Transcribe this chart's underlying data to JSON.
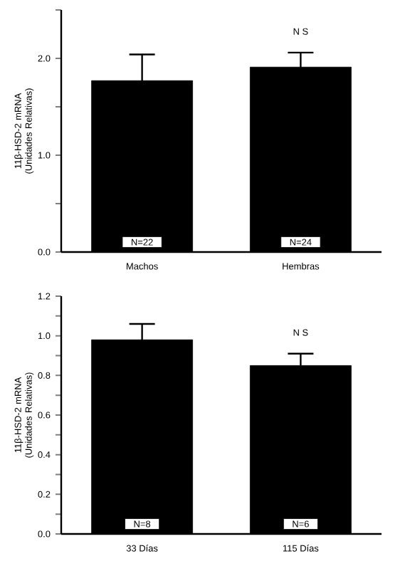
{
  "chart_data": [
    {
      "type": "bar",
      "ylabel": "11β-HSD-2 mRNA (Unidades Relativas)",
      "categories": [
        "Machos",
        "Hembras"
      ],
      "values": [
        1.77,
        1.91
      ],
      "errors": [
        0.27,
        0.15
      ],
      "color": "#000000",
      "ylim": [
        0,
        2.5
      ],
      "yticks": [
        {
          "value": 0,
          "label": "0.0"
        },
        {
          "value": 0.5,
          "label": null
        },
        {
          "value": 1,
          "label": "1.0"
        },
        {
          "value": 1.5,
          "label": null
        },
        {
          "value": 2,
          "label": "2.0"
        },
        {
          "value": 2.5,
          "label": null
        }
      ],
      "annotations": [
        "N=22",
        "N=24",
        "N S"
      ]
    },
    {
      "type": "bar",
      "ylabel": "11β-HSD-2 mRNA (Unidades Relativas)",
      "categories": [
        "33 Días",
        "115 Días"
      ],
      "values": [
        0.98,
        0.85
      ],
      "errors": [
        0.08,
        0.06
      ],
      "color": "#000000",
      "ylim": [
        0,
        1.2
      ],
      "yticks": [
        {
          "value": 0,
          "label": "0.0"
        },
        {
          "value": 0.1,
          "label": null
        },
        {
          "value": 0.2,
          "label": "0.2"
        },
        {
          "value": 0.3,
          "label": null
        },
        {
          "value": 0.4,
          "label": "0.4"
        },
        {
          "value": 0.5,
          "label": null
        },
        {
          "value": 0.6,
          "label": "0.6"
        },
        {
          "value": 0.7,
          "label": null
        },
        {
          "value": 0.8,
          "label": "0.8"
        },
        {
          "value": 0.9,
          "label": null
        },
        {
          "value": 1,
          "label": "1.0"
        },
        {
          "value": 1.1,
          "label": null
        },
        {
          "value": 1.2,
          "label": "1.2"
        }
      ],
      "annotations": [
        "N=8",
        "N=6",
        "N S"
      ]
    }
  ]
}
